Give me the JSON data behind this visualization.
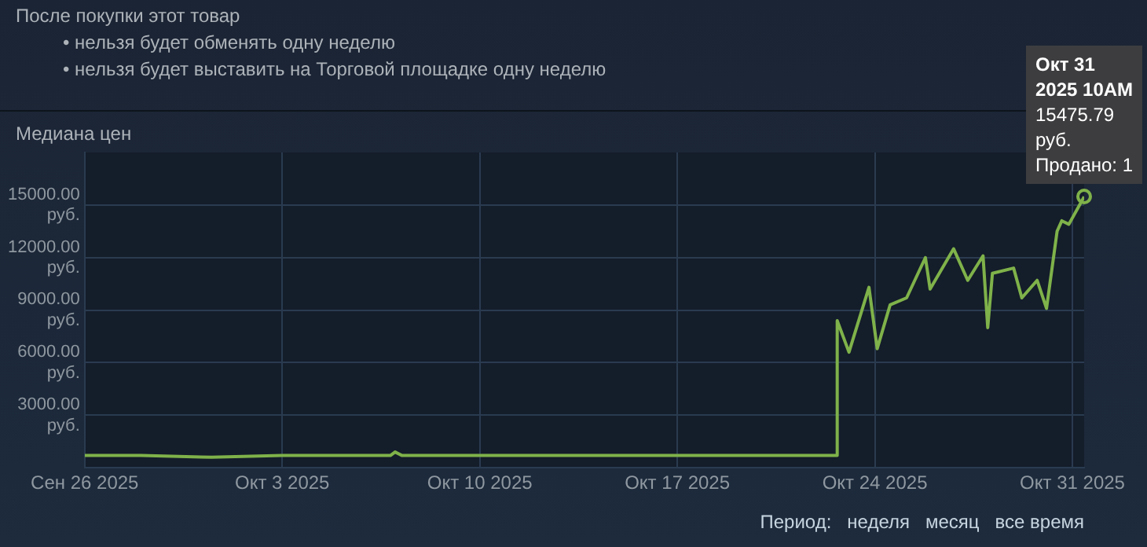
{
  "chart_data": {
    "type": "line",
    "title": "Медиана цен",
    "x": [
      "2025-09-26T00:00",
      "2025-09-28T00:00",
      "2025-09-30T12:00",
      "2025-10-03T00:00",
      "2025-10-05T00:00",
      "2025-10-06T20:00",
      "2025-10-07T00:00",
      "2025-10-07T06:00",
      "2025-10-09T00:00",
      "2025-10-12T00:00",
      "2025-10-15T00:00",
      "2025-10-18T00:00",
      "2025-10-20T00:00",
      "2025-10-22T15:00",
      "2025-10-22T16:00",
      "2025-10-23T02:00",
      "2025-10-23T19:00",
      "2025-10-24T02:00",
      "2025-10-24T13:00",
      "2025-10-25T03:00",
      "2025-10-25T19:00",
      "2025-10-25T23:00",
      "2025-10-26T19:00",
      "2025-10-27T07:00",
      "2025-10-27T20:00",
      "2025-10-28T00:00",
      "2025-10-28T04:00",
      "2025-10-28T22:00",
      "2025-10-29T05:00",
      "2025-10-29T18:00",
      "2025-10-30T02:00",
      "2025-10-30T11:00",
      "2025-10-30T15:00",
      "2025-10-30T21:00",
      "2025-10-31T10:00"
    ],
    "series": [
      {
        "color": "#7fb24a",
        "values": [
          700,
          700,
          600,
          700,
          700,
          700,
          900,
          700,
          700,
          700,
          700,
          700,
          700,
          700,
          8400,
          6600,
          10300,
          6800,
          9300,
          9700,
          12000,
          10200,
          12500,
          10700,
          12100,
          8000,
          11100,
          11400,
          9700,
          10700,
          9100,
          13500,
          14100,
          13900,
          15475.79
        ]
      }
    ],
    "xlim": [
      "2025-09-26T00:00",
      "2025-10-31T10:00"
    ],
    "xticks": [
      {
        "value": "2025-09-26",
        "label": "Сен 26 2025"
      },
      {
        "value": "2025-10-03",
        "label": "Окт 3 2025"
      },
      {
        "value": "2025-10-10",
        "label": "Окт 10 2025"
      },
      {
        "value": "2025-10-17",
        "label": "Окт 17 2025"
      },
      {
        "value": "2025-10-24",
        "label": "Окт 24 2025"
      },
      {
        "value": "2025-10-31",
        "label": "Окт 31 2025"
      }
    ],
    "ylim": [
      0,
      18000
    ],
    "yticks": [
      {
        "value": 3000,
        "label": "3000.00 руб."
      },
      {
        "value": 6000,
        "label": "6000.00 руб."
      },
      {
        "value": 9000,
        "label": "9000.00 руб."
      },
      {
        "value": 12000,
        "label": "12000.00 руб."
      },
      {
        "value": 15000,
        "label": "15000.00 руб."
      }
    ],
    "grid": true,
    "legend": false,
    "marker": "none",
    "line_style": "solid",
    "annotations": [
      "После покупки этот товар",
      "• нельзя будет обменять одну неделю",
      "• нельзя будет выставить на Торговой площадке одну неделю",
      {
        "text": "Окт 31\n2025 10AM\n15475.79\nруб.\nПродано: 1",
        "x": "2025-10-31T10:00",
        "y": 15475.79
      },
      "Период:",
      "неделя",
      "месяц",
      "все время"
    ]
  }
}
